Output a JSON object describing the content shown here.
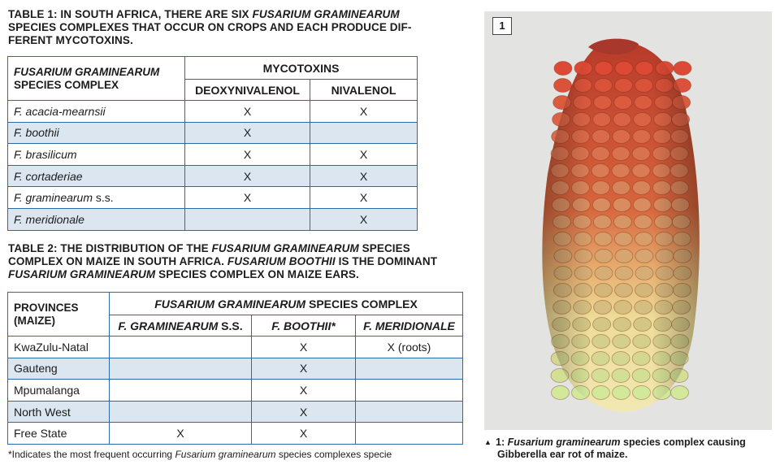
{
  "table1": {
    "title_line1_pre": "TABLE 1: IN SOUTH AFRICA, THERE ARE SIX ",
    "title_line1_em": "FUSARIUM GRAMINEARUM",
    "title_rest": "SPECIES COMPLEXES THAT OCCUR ON CROPS AND EACH PRODUCE DIF-FERENT MYCOTOXINS.",
    "col_species": "FUSARIUM GRAMINEARUM",
    "col_species_2": "SPECIES COMPLEX",
    "col_group": "MYCOTOXINS",
    "col_a": "DEOXYNIVALENOL",
    "col_b": "NIVALENOL",
    "rows": [
      {
        "species": "F. acacia-mearnsii",
        "suffix": "",
        "a": "X",
        "b": "X"
      },
      {
        "species": "F. boothii",
        "suffix": "",
        "a": "X",
        "b": ""
      },
      {
        "species": "F. brasilicum",
        "suffix": "",
        "a": "X",
        "b": "X"
      },
      {
        "species": "F. cortaderiae",
        "suffix": "",
        "a": "X",
        "b": "X"
      },
      {
        "species": "F. graminearum",
        "suffix": " s.s.",
        "a": "X",
        "b": "X"
      },
      {
        "species": "F. meridionale",
        "suffix": "",
        "a": "",
        "b": "X"
      }
    ]
  },
  "table2": {
    "title_l1_pre": "TABLE 2: THE DISTRIBUTION OF THE ",
    "title_l1_em": "FUSARIUM GRAMINEARUM",
    "title_l1_post": " SPECIES",
    "title_l2_pre": "COMPLEX ON MAIZE IN SOUTH AFRICA. ",
    "title_l2_em": "FUSARIUM BOOTHII",
    "title_l2_post": " IS THE DOMINANT",
    "title_l3_em": "FUSARIUM GRAMINEARUM",
    "title_l3_post": " SPECIES COMPLEX ON MAIZE EARS.",
    "col_prov": "PROVINCES",
    "col_prov_2": "(MAIZE)",
    "col_group_em": "FUSARIUM GRAMINEARUM",
    "col_group_post": " SPECIES COMPLEX",
    "col_a_em": "F. GRAMINEARUM",
    "col_a_post": " S.S.",
    "col_b": "F. BOOTHII*",
    "col_c": "F. MERIDIONALE",
    "rows": [
      {
        "province": "KwaZulu-Natal",
        "a": "",
        "b": "X",
        "c": "X (roots)"
      },
      {
        "province": "Gauteng",
        "a": "",
        "b": "X",
        "c": ""
      },
      {
        "province": "Mpumalanga",
        "a": "",
        "b": "X",
        "c": ""
      },
      {
        "province": "North West",
        "a": "",
        "b": "X",
        "c": ""
      },
      {
        "province": "Free State",
        "a": "X",
        "b": "X",
        "c": ""
      }
    ]
  },
  "footnote": {
    "pre": "*Indicates the most frequent occurring ",
    "em": "Fusarium graminearum",
    "post": " species complexes specie"
  },
  "figure": {
    "number": "1",
    "caption_pre": "1: ",
    "caption_em": "Fusarium graminearum",
    "caption_post": " species complex causing",
    "caption_line2": "Gibberella ear rot of maize."
  },
  "colors": {
    "table_border": "#2a6aa8",
    "row_shade": "#dbe6f1",
    "photo_bg": "#e3e3e1",
    "kernel_red": "#c9402c",
    "kernel_yellow": "#efe6a6"
  }
}
